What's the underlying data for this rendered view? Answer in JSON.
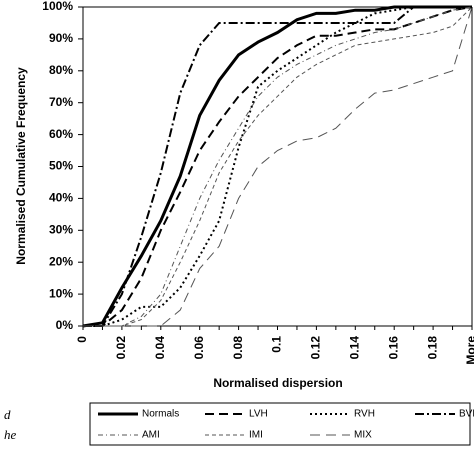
{
  "chart_data": {
    "type": "line",
    "ylabel": "Normalised Cumulative Frequency",
    "xlabel": "Normalised dispersion",
    "side_text": [
      "d",
      "he"
    ],
    "categories": [
      "0",
      null,
      "0.02",
      null,
      "0.04",
      null,
      "0.06",
      null,
      "0.08",
      null,
      "0.1",
      null,
      "0.12",
      null,
      "0.14",
      null,
      "0.16",
      null,
      "0.18",
      null,
      "More"
    ],
    "ylim": [
      0,
      100
    ],
    "yticks": [
      {
        "value": 0,
        "label": "0%"
      },
      {
        "value": 10,
        "label": "10%"
      },
      {
        "value": 20,
        "label": "20%"
      },
      {
        "value": 30,
        "label": "30%"
      },
      {
        "value": 40,
        "label": "40%"
      },
      {
        "value": 50,
        "label": "50%"
      },
      {
        "value": 60,
        "label": "60%"
      },
      {
        "value": 70,
        "label": "70%"
      },
      {
        "value": 80,
        "label": "80%"
      },
      {
        "value": 90,
        "label": "90%"
      },
      {
        "value": 100,
        "label": "100%"
      }
    ],
    "series": [
      {
        "name": "Normals",
        "color": "#000000",
        "dash": "none",
        "width": 3,
        "values": [
          0,
          1,
          12,
          22,
          33,
          47,
          66,
          77,
          85,
          89,
          92,
          96,
          98,
          98,
          99,
          99,
          100,
          100,
          100,
          100,
          100
        ]
      },
      {
        "name": "LVH",
        "color": "#000000",
        "dash": "9 5",
        "width": 2,
        "values": [
          0,
          0,
          5,
          15,
          30,
          42,
          55,
          64,
          72,
          78,
          84,
          88,
          91,
          91,
          92,
          93,
          93,
          95,
          97,
          99,
          100
        ]
      },
      {
        "name": "RVH",
        "color": "#000000",
        "dash": "2 3",
        "width": 2,
        "values": [
          0,
          0,
          2,
          6,
          6,
          12,
          22,
          33,
          56,
          75,
          80,
          84,
          88,
          92,
          95,
          98,
          99,
          100,
          100,
          100,
          100
        ]
      },
      {
        "name": "BVH",
        "color": "#000000",
        "dash": "9 3 2 3",
        "width": 2,
        "values": [
          0,
          0,
          10,
          28,
          48,
          73,
          88,
          95,
          95,
          95,
          95,
          95,
          95,
          95,
          95,
          95,
          95,
          100,
          100,
          100,
          100
        ]
      },
      {
        "name": "AMI",
        "color": "#555555",
        "dash": "5 3 1 3",
        "width": 1,
        "values": [
          0,
          0,
          0,
          3,
          10,
          25,
          40,
          52,
          62,
          72,
          78,
          82,
          85,
          88,
          90,
          92,
          93,
          95,
          97,
          99,
          100
        ]
      },
      {
        "name": "IMI",
        "color": "#555555",
        "dash": "4 3",
        "width": 1,
        "values": [
          0,
          0,
          0,
          2,
          8,
          20,
          33,
          48,
          58,
          66,
          72,
          78,
          82,
          85,
          88,
          89,
          90,
          91,
          92,
          94,
          100
        ]
      },
      {
        "name": "MIX",
        "color": "#555555",
        "dash": "10 6",
        "width": 1,
        "values": [
          0,
          0,
          0,
          0,
          0,
          5,
          18,
          25,
          40,
          50,
          55,
          58,
          59,
          62,
          68,
          73,
          74,
          76,
          78,
          80,
          100
        ]
      }
    ]
  }
}
